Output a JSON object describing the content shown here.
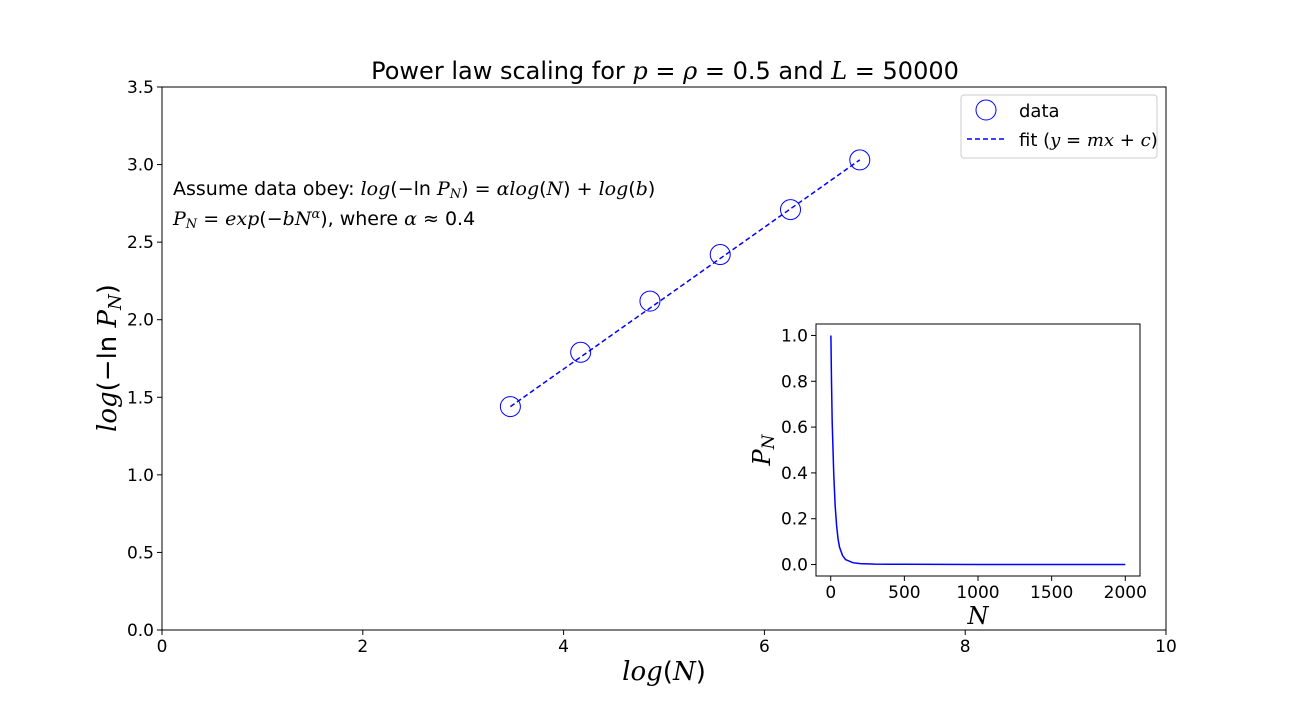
{
  "chart_data": [
    {
      "type": "scatter",
      "title": {
        "prefix": "Power law scaling for ",
        "var1": "p",
        "mid1": " = ",
        "var2": "ρ",
        "mid2": " = 0.5 and ",
        "var3": "L",
        "suffix": " = 50000"
      },
      "xlabel": {
        "fn": "log",
        "arg": "N"
      },
      "ylabel": {
        "fn": "log",
        "inner": "(−ln ",
        "var": "P",
        "sub": "N",
        "close": ")"
      },
      "xlim": [
        0,
        10
      ],
      "ylim": [
        0,
        3.5
      ],
      "x_ticks": [
        0,
        2,
        4,
        6,
        8,
        10
      ],
      "x_tick_labels": [
        "0",
        "2",
        "4",
        "6",
        "8",
        "10"
      ],
      "y_ticks": [
        0,
        0.5,
        1.0,
        1.5,
        2.0,
        2.5,
        3.0,
        3.5
      ],
      "y_tick_labels": [
        "0.0",
        "0.5",
        "1.0",
        "1.5",
        "2.0",
        "2.5",
        "3.0",
        "3.5"
      ],
      "grid": false,
      "legend_position": "top-right",
      "series": [
        {
          "name": "data",
          "style": "open-circle",
          "color": "#0000ff",
          "x": [
            3.47,
            4.17,
            4.86,
            5.56,
            6.26,
            6.95
          ],
          "y": [
            1.44,
            1.79,
            2.12,
            2.42,
            2.71,
            3.03
          ]
        },
        {
          "name": "fit (y = mx + c)",
          "style": "dashed-line",
          "color": "#0000ff",
          "x": [
            3.47,
            6.95
          ],
          "y": [
            1.44,
            3.03
          ]
        }
      ],
      "legend": {
        "data_label": "data",
        "fit_label": {
          "prefix": "fit (",
          "y": "y",
          "eq": " = ",
          "m": "m",
          "x": "x",
          "plus": " + ",
          "c": "c",
          "suffix": ")"
        }
      },
      "annotation": {
        "line1": {
          "prefix": "Assume data obey: ",
          "log1": "log",
          "mid1": "(−ln ",
          "P": "P",
          "sub": "N",
          "mid2": ") = ",
          "alpha": "α",
          "log2": "log",
          "mid3": "(",
          "N": "N",
          "mid4": ") + ",
          "log3": "log",
          "mid5": "(",
          "b": "b",
          "suffix": ")"
        },
        "line2": {
          "P": "P",
          "sub": "N",
          "eq": " = ",
          "exp": "exp",
          "mid1": "(−",
          "b": "b",
          "N": "N",
          "alpha_sup": "α",
          "mid2": "), where ",
          "alpha": "α",
          "suffix": " ≈ 0.4"
        }
      }
    },
    {
      "type": "line",
      "title": "",
      "xlabel": "N",
      "ylabel": {
        "var": "P",
        "sub": "N"
      },
      "xlim": [
        -100,
        2100
      ],
      "ylim": [
        -0.05,
        1.05
      ],
      "x_ticks": [
        0,
        500,
        1000,
        1500,
        2000
      ],
      "x_tick_labels": [
        "0",
        "500",
        "1000",
        "1500",
        "2000"
      ],
      "y_ticks": [
        0,
        0.2,
        0.4,
        0.6,
        0.8,
        1.0
      ],
      "y_tick_labels": [
        "0.0",
        "0.2",
        "0.4",
        "0.6",
        "0.8",
        "1.0"
      ],
      "series": [
        {
          "color": "#0000ff",
          "x": [
            1,
            5,
            10,
            20,
            30,
            40,
            50,
            60,
            80,
            100,
            150,
            200,
            300,
            500,
            1000,
            1500,
            2000
          ],
          "y": [
            1.0,
            0.8,
            0.62,
            0.4,
            0.26,
            0.17,
            0.11,
            0.075,
            0.04,
            0.022,
            0.008,
            0.004,
            0.002,
            0.001,
            0.0,
            0.0,
            0.0
          ]
        }
      ]
    }
  ]
}
